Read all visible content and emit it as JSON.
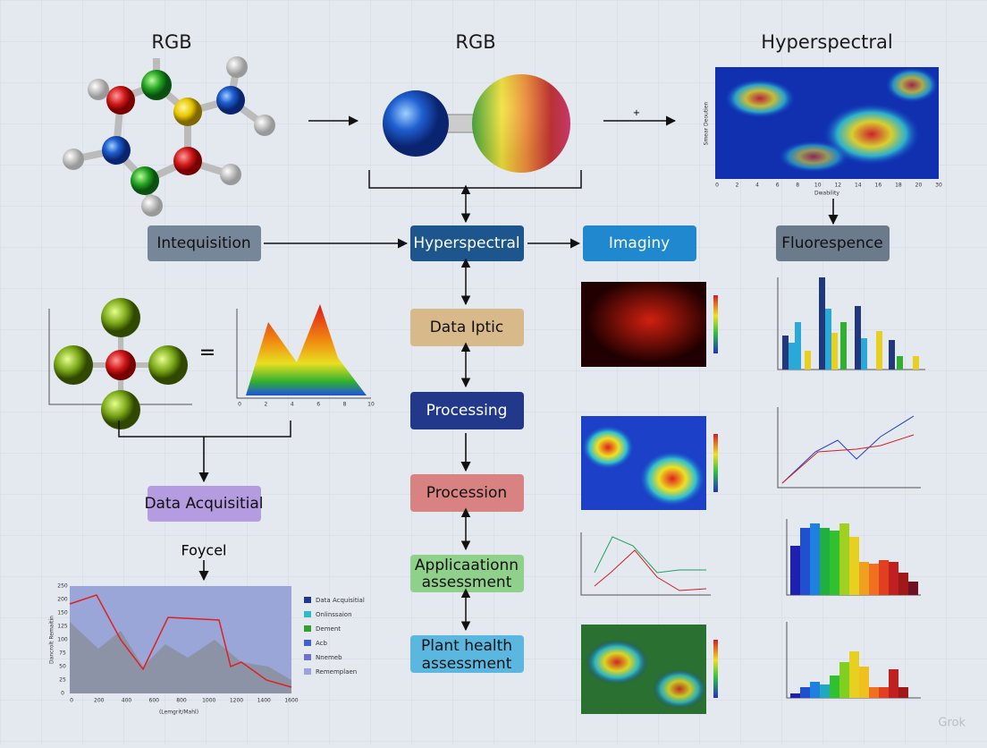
{
  "headers": [
    "RGB",
    "RGB",
    "Hyperspectral"
  ],
  "boxes": {
    "intequisition": "Intequisition",
    "hyperspectral": "Hyperspectral",
    "imaginy": "Imaginy",
    "fluorespence": "Fluorespence",
    "data_iptic": "Data Iptic",
    "processing": "Processing",
    "procession": "Procession",
    "application": [
      "Applicaationn",
      "assessment"
    ],
    "plant_health": [
      "Plant health",
      "assessment"
    ],
    "data_acquisitial": "Data Acquisitial"
  },
  "foycel": "Foycel",
  "plus": "+",
  "hyperspectral_map": {
    "x_ticks": [
      "0",
      "2",
      "4",
      "6",
      "8",
      "10",
      "12",
      "14",
      "16",
      "18",
      "20",
      "30"
    ],
    "x_label": "Dwability",
    "y_label": "Smear Deoutien"
  },
  "spectrum_chart": {
    "x_ticks": [
      "0",
      "2",
      "4",
      "6",
      "8",
      "10"
    ]
  },
  "bottom_chart": {
    "x_ticks": [
      "0",
      "200",
      "400",
      "600",
      "800",
      "1000",
      "1200",
      "1400",
      "1600"
    ],
    "y_ticks": [
      "0",
      "25",
      "50",
      "75",
      "100",
      "125",
      "150",
      "200",
      "250"
    ],
    "x_label": "(Lemgrit/Mahl)",
    "y_label": "Dancrolt Remaitin",
    "legend": [
      "Data Acquisitial",
      "Onlinssaion",
      "Dement",
      "Acb",
      "Nnemeb",
      "Rememplaen"
    ]
  },
  "watermark": "Grok"
}
